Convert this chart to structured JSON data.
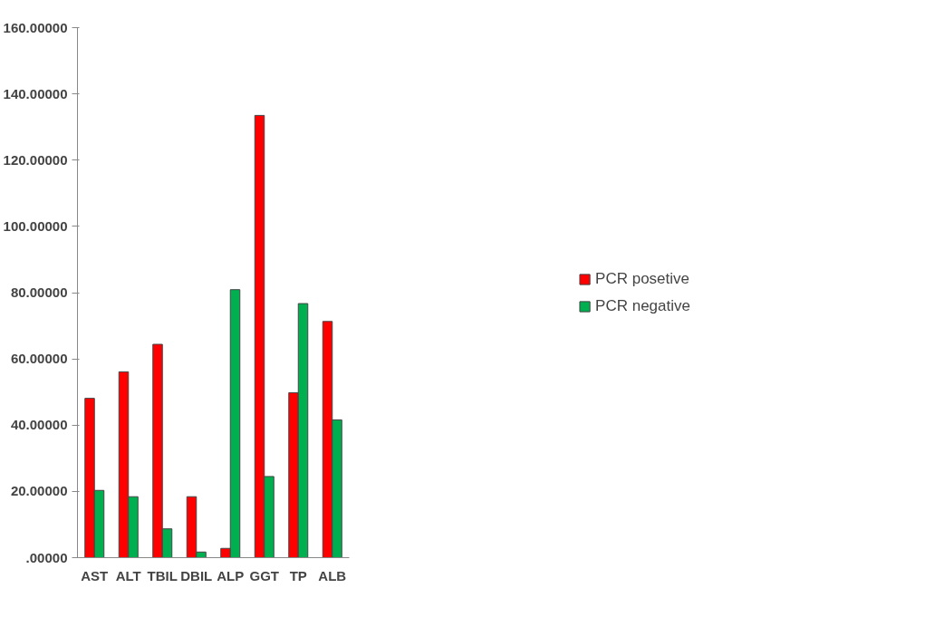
{
  "chart_data": {
    "type": "bar",
    "categories": [
      "AST",
      "ALT",
      "TBIL",
      "DBIL",
      "ALP",
      "GGT",
      "TP",
      "ALB"
    ],
    "series": [
      {
        "name": "PCR posetive",
        "color": "#ff0000",
        "values": [
          48.1,
          56.1,
          64.4,
          18.4,
          2.8,
          133.5,
          49.8,
          71.3
        ]
      },
      {
        "name": "PCR negative",
        "color": "#00b050",
        "values": [
          20.3,
          18.4,
          8.7,
          1.7,
          80.9,
          24.5,
          76.7,
          41.6
        ]
      }
    ],
    "ylim": [
      0,
      160
    ],
    "yticks": [
      {
        "value": 0,
        "label": ".00000"
      },
      {
        "value": 20,
        "label": "20.00000"
      },
      {
        "value": 40,
        "label": "40.00000"
      },
      {
        "value": 60,
        "label": "60.00000"
      },
      {
        "value": 80,
        "label": "80.00000"
      },
      {
        "value": 100,
        "label": "100.00000"
      },
      {
        "value": 120,
        "label": "120.00000"
      },
      {
        "value": 140,
        "label": "140.00000"
      },
      {
        "value": 160,
        "label": "160.00000"
      }
    ],
    "grid": false,
    "legend": "right"
  }
}
